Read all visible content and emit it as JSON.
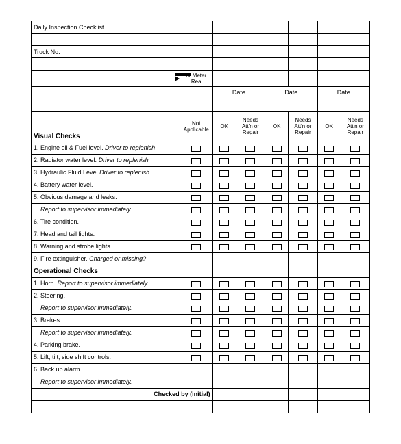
{
  "title": "Daily Inspection Checklist",
  "truck_label": "Truck No.",
  "meter_label": "ur Meter Rea",
  "date_label": "Date",
  "col_headers": {
    "na": "Not Applicable",
    "ok": "OK",
    "need": "Needs Att'n or Repair"
  },
  "visual_checks_header": "Visual Checks",
  "visual_items": [
    {
      "num": "1.",
      "text": "Engine oil & Fuel level.",
      "note": "Driver to replenish"
    },
    {
      "num": "2.",
      "text": "Radiator water level.",
      "note": "Driver to replenish"
    },
    {
      "num": "3.",
      "text": "Hydraulic Fluid Level",
      "note": "Driver to replenish"
    },
    {
      "num": "4.",
      "text": "Battery water level."
    },
    {
      "num": "5.",
      "text": "Obvious damage and leaks."
    },
    {
      "indent": true,
      "note": "Report to supervisor immediately."
    },
    {
      "num": "6.",
      "text": "Tire condition."
    },
    {
      "num": "7.",
      "text": "Head and tail lights."
    },
    {
      "num": "8.",
      "text": "Warning and strobe lights."
    },
    {
      "num": "9.",
      "text": "Fire extinguisher.",
      "note": "Charged or missing?",
      "no_checks": true
    }
  ],
  "operational_header": "Operational Checks",
  "operational_items": [
    {
      "num": "1.",
      "text": "Horn.",
      "note": "Report to supervisor immediately.",
      "inline_note": true
    },
    {
      "num": "2.",
      "text": "Steering."
    },
    {
      "indent": true,
      "note": "Report to supervisor immediately."
    },
    {
      "num": "3.",
      "text": "Brakes."
    },
    {
      "indent": true,
      "note": "Report to supervisor immediately."
    },
    {
      "num": "4.",
      "text": "Parking brake."
    },
    {
      "num": "5.",
      "text": "Lift, tilt, side shift controls."
    },
    {
      "num": "6.",
      "text": "Back up alarm.",
      "no_checks": true
    },
    {
      "indent": true,
      "note": "Report to supervisor immediately.",
      "no_checks": true
    }
  ],
  "checked_by": "Checked by (initial)"
}
